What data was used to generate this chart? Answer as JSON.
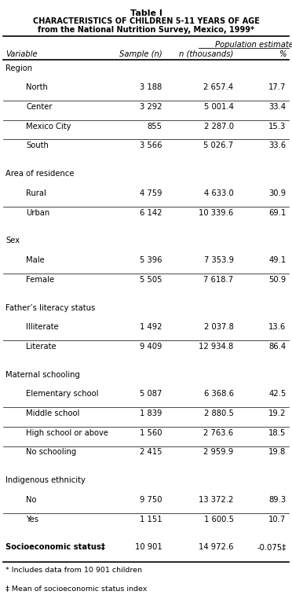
{
  "title_line1": "Table I",
  "title_line2_parts": [
    {
      "text": "C",
      "big": true
    },
    {
      "text": "haracteristics of ",
      "big": false
    },
    {
      "text": "C",
      "big": true
    },
    {
      "text": "hildren ",
      "big": false
    },
    {
      "text": "5-11",
      "big": true
    },
    {
      "text": " ",
      "big": false
    },
    {
      "text": "Y",
      "big": true
    },
    {
      "text": "ears of ",
      "big": false
    },
    {
      "text": "A",
      "big": true
    },
    {
      "text": "ge",
      "big": false
    }
  ],
  "title_line2": "Characteristics of children 5-11 years of age",
  "title_line3": "from the National Nutrition Survey, Mexico, 1999*",
  "col_header_group": "Population estimate",
  "footnotes": [
    "* Includes data from 10 901 children",
    "‡ Mean of socioeconomic status index"
  ],
  "rows": [
    {
      "label": "Region",
      "indent": 0,
      "sample": "",
      "n_thou": "",
      "pct": "",
      "is_header": true,
      "spacer": false
    },
    {
      "label": "North",
      "indent": 1,
      "sample": "3 188",
      "n_thou": "2 657.4",
      "pct": "17.7",
      "is_header": false,
      "spacer": false
    },
    {
      "label": "Center",
      "indent": 1,
      "sample": "3 292",
      "n_thou": "5 001.4",
      "pct": "33.4",
      "is_header": false,
      "spacer": false
    },
    {
      "label": "Mexico City",
      "indent": 1,
      "sample": "855",
      "n_thou": "2 287.0",
      "pct": "15.3",
      "is_header": false,
      "spacer": false
    },
    {
      "label": "South",
      "indent": 1,
      "sample": "3 566",
      "n_thou": "5 026.7",
      "pct": "33.6",
      "is_header": false,
      "spacer": false
    },
    {
      "label": "",
      "indent": 0,
      "sample": "",
      "n_thou": "",
      "pct": "",
      "is_header": false,
      "spacer": true
    },
    {
      "label": "Area of residence",
      "indent": 0,
      "sample": "",
      "n_thou": "",
      "pct": "",
      "is_header": true,
      "spacer": false
    },
    {
      "label": "Rural",
      "indent": 1,
      "sample": "4 759",
      "n_thou": "4 633.0",
      "pct": "30.9",
      "is_header": false,
      "spacer": false
    },
    {
      "label": "Urban",
      "indent": 1,
      "sample": "6 142",
      "n_thou": "10 339.6",
      "pct": "69.1",
      "is_header": false,
      "spacer": false
    },
    {
      "label": "",
      "indent": 0,
      "sample": "",
      "n_thou": "",
      "pct": "",
      "is_header": false,
      "spacer": true
    },
    {
      "label": "Sex",
      "indent": 0,
      "sample": "",
      "n_thou": "",
      "pct": "",
      "is_header": true,
      "spacer": false
    },
    {
      "label": "Male",
      "indent": 1,
      "sample": "5 396",
      "n_thou": "7 353.9",
      "pct": "49.1",
      "is_header": false,
      "spacer": false
    },
    {
      "label": "Female",
      "indent": 1,
      "sample": "5 505",
      "n_thou": "7 618.7",
      "pct": "50.9",
      "is_header": false,
      "spacer": false
    },
    {
      "label": "",
      "indent": 0,
      "sample": "",
      "n_thou": "",
      "pct": "",
      "is_header": false,
      "spacer": true
    },
    {
      "label": "Father’s literacy status",
      "indent": 0,
      "sample": "",
      "n_thou": "",
      "pct": "",
      "is_header": true,
      "spacer": false
    },
    {
      "label": "Illiterate",
      "indent": 1,
      "sample": "1 492",
      "n_thou": "2 037.8",
      "pct": "13.6",
      "is_header": false,
      "spacer": false
    },
    {
      "label": "Literate",
      "indent": 1,
      "sample": "9 409",
      "n_thou": "12 934.8",
      "pct": "86.4",
      "is_header": false,
      "spacer": false
    },
    {
      "label": "",
      "indent": 0,
      "sample": "",
      "n_thou": "",
      "pct": "",
      "is_header": false,
      "spacer": true
    },
    {
      "label": "Maternal schooling",
      "indent": 0,
      "sample": "",
      "n_thou": "",
      "pct": "",
      "is_header": true,
      "spacer": false
    },
    {
      "label": "Elementary school",
      "indent": 1,
      "sample": "5 087",
      "n_thou": "6 368.6",
      "pct": "42.5",
      "is_header": false,
      "spacer": false
    },
    {
      "label": "Middle school",
      "indent": 1,
      "sample": "1 839",
      "n_thou": "2 880.5",
      "pct": "19.2",
      "is_header": false,
      "spacer": false
    },
    {
      "label": "High school or above",
      "indent": 1,
      "sample": "1 560",
      "n_thou": "2 763.6",
      "pct": "18.5",
      "is_header": false,
      "spacer": false
    },
    {
      "label": "No schooling",
      "indent": 1,
      "sample": "2 415",
      "n_thou": "2 959.9",
      "pct": "19.8",
      "is_header": false,
      "spacer": false
    },
    {
      "label": "",
      "indent": 0,
      "sample": "",
      "n_thou": "",
      "pct": "",
      "is_header": false,
      "spacer": true
    },
    {
      "label": "Indigenous ethnicity",
      "indent": 0,
      "sample": "",
      "n_thou": "",
      "pct": "",
      "is_header": true,
      "spacer": false
    },
    {
      "label": "No",
      "indent": 1,
      "sample": "9 750",
      "n_thou": "13 372.2",
      "pct": "89.3",
      "is_header": false,
      "spacer": false
    },
    {
      "label": "Yes",
      "indent": 1,
      "sample": "1 151",
      "n_thou": "1 600.5",
      "pct": "10.7",
      "is_header": false,
      "spacer": false
    },
    {
      "label": "",
      "indent": 0,
      "sample": "",
      "n_thou": "",
      "pct": "",
      "is_header": false,
      "spacer": true
    },
    {
      "label": "Socioeconomic status‡",
      "indent": 0,
      "sample": "10 901",
      "n_thou": "14 972.6",
      "pct": "-0.075‡",
      "is_header": false,
      "spacer": false,
      "bold_label": true
    }
  ],
  "bg_color": "#ffffff",
  "text_color": "#000000",
  "line_color": "#000000"
}
